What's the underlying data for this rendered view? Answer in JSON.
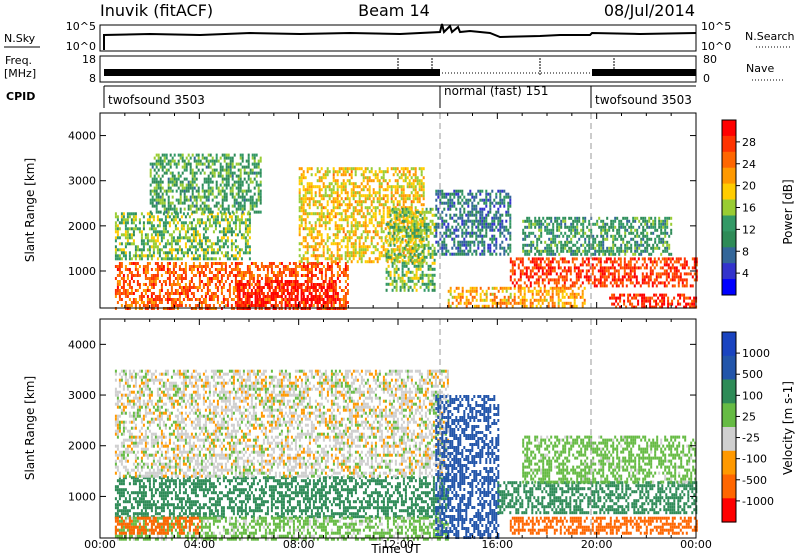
{
  "header": {
    "station": "Inuvik (fitACF)",
    "beam": "Beam 14",
    "date": "08/Jul/2014"
  },
  "sky_panel": {
    "left_label": "N.Sky",
    "right_label": "N.Search",
    "left_ticks": [
      "10^5",
      "10^0"
    ],
    "right_ticks": [
      "10^5",
      "10^0"
    ]
  },
  "freq_panel": {
    "left_label_line1": "Freq.",
    "left_label_line2": "[MHz]",
    "right_label": "Nave",
    "left_ticks": [
      "18",
      "8"
    ],
    "right_ticks": [
      "80",
      "0"
    ]
  },
  "cpid_panel": {
    "label": "CPID",
    "segments": [
      {
        "name": "twofsound 3503",
        "start_hour": 0.6,
        "end_hour": 14.0
      },
      {
        "name": "normal (fast) 151",
        "start_hour": 14.0,
        "end_hour": 20.0
      },
      {
        "name": "twofsound 3503",
        "start_hour": 20.0,
        "end_hour": 24.0
      }
    ]
  },
  "x_axis": {
    "label": "Time UT",
    "ticks": [
      "00:00",
      "04:00",
      "08:00",
      "12:00",
      "16:00",
      "20:00",
      "00:00"
    ]
  },
  "power_colorbar": {
    "title": "Power [dB]",
    "ticks": [
      "28",
      "24",
      "20",
      "16",
      "12",
      "8",
      "4"
    ],
    "colors": [
      "#ff0000",
      "#ff3300",
      "#ff6600",
      "#ff9900",
      "#ffcc00",
      "#99cc33",
      "#339966",
      "#2e8b57",
      "#336699",
      "#3333cc",
      "#0000ff"
    ]
  },
  "velocity_colorbar": {
    "title": "Velocity [m s-1]",
    "ticks": [
      "1000",
      "500",
      "100",
      "25",
      "-25",
      "-100",
      "-500",
      "-1000"
    ],
    "colors": [
      "#1a44c0",
      "#2255aa",
      "#2e8b57",
      "#66bb44",
      "#cfcfcf",
      "#ff9900",
      "#ff6600",
      "#ff0000"
    ]
  },
  "chart_data": [
    {
      "type": "heatmap",
      "title": "Power",
      "xlabel": "Time UT",
      "ylabel": "Slant Range [km]",
      "y_ticks": [
        "1000",
        "2000",
        "3000",
        "4000"
      ],
      "ylim": [
        180,
        4500
      ],
      "xlim_hours": [
        0,
        24
      ],
      "value_label": "Power [dB]",
      "value_range": [
        0,
        30
      ],
      "regions": [
        {
          "t": [
            0.6,
            10.0
          ],
          "r": [
            200,
            1200
          ],
          "value": 24
        },
        {
          "t": [
            5.5,
            9.5
          ],
          "r": [
            180,
            800
          ],
          "value": 29
        },
        {
          "t": [
            0.6,
            6.0
          ],
          "r": [
            1300,
            2300
          ],
          "value": 14
        },
        {
          "t": [
            2.0,
            6.5
          ],
          "r": [
            2300,
            3600
          ],
          "value": 12
        },
        {
          "t": [
            8.0,
            13.0
          ],
          "r": [
            1200,
            3300
          ],
          "value": 18
        },
        {
          "t": [
            11.5,
            13.5
          ],
          "r": [
            600,
            2400
          ],
          "value": 14
        },
        {
          "t": [
            13.5,
            16.5
          ],
          "r": [
            1400,
            2800
          ],
          "value": 8
        },
        {
          "t": [
            14.0,
            19.5
          ],
          "r": [
            250,
            650
          ],
          "value": 20
        },
        {
          "t": [
            16.5,
            24.0
          ],
          "r": [
            700,
            1300
          ],
          "value": 26
        },
        {
          "t": [
            17.0,
            23.0
          ],
          "r": [
            1400,
            2200
          ],
          "value": 11
        },
        {
          "t": [
            20.5,
            24.0
          ],
          "r": [
            200,
            500
          ],
          "value": 27
        }
      ]
    },
    {
      "type": "heatmap",
      "title": "Velocity",
      "xlabel": "Time UT",
      "ylabel": "Slant Range [km]",
      "y_ticks": [
        "1000",
        "2000",
        "3000",
        "4000"
      ],
      "ylim": [
        180,
        4500
      ],
      "xlim_hours": [
        0,
        24
      ],
      "value_label": "Velocity [m s-1]",
      "value_range": [
        -1000,
        1000
      ],
      "regions": [
        {
          "t": [
            0.6,
            14.0
          ],
          "r": [
            600,
            1400
          ],
          "value": 150
        },
        {
          "t": [
            0.6,
            14.0
          ],
          "r": [
            180,
            600
          ],
          "value": 50
        },
        {
          "t": [
            0.6,
            4.0
          ],
          "r": [
            300,
            600
          ],
          "value": -200
        },
        {
          "t": [
            0.6,
            14.0
          ],
          "r": [
            1400,
            3500
          ],
          "value": 0
        },
        {
          "t": [
            13.5,
            16.0
          ],
          "r": [
            200,
            3000
          ],
          "value": 700
        },
        {
          "t": [
            16.0,
            24.0
          ],
          "r": [
            700,
            1300
          ],
          "value": 200
        },
        {
          "t": [
            16.5,
            24.0
          ],
          "r": [
            300,
            600
          ],
          "value": -300
        },
        {
          "t": [
            17.0,
            24.0
          ],
          "r": [
            1300,
            2200
          ],
          "value": 60
        }
      ]
    }
  ]
}
